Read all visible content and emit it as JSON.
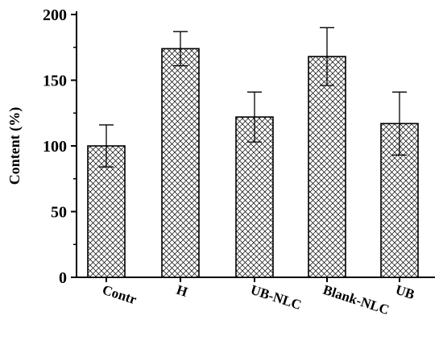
{
  "chart_data": {
    "type": "bar",
    "title": "",
    "xlabel": "",
    "ylabel": "Content (%)",
    "categories": [
      "Contr",
      "H",
      "UB-NLC",
      "Blank-NLC",
      "UB"
    ],
    "values": [
      100,
      174,
      122,
      168,
      117
    ],
    "errors": [
      16,
      13,
      19,
      22,
      24
    ],
    "ylim": [
      0,
      200
    ],
    "yticks": [
      "0",
      "50",
      "100",
      "150",
      "200"
    ],
    "grid": false,
    "legend": "none",
    "bar_fill": "crosshatch",
    "bar_stroke_color": "#000000"
  }
}
